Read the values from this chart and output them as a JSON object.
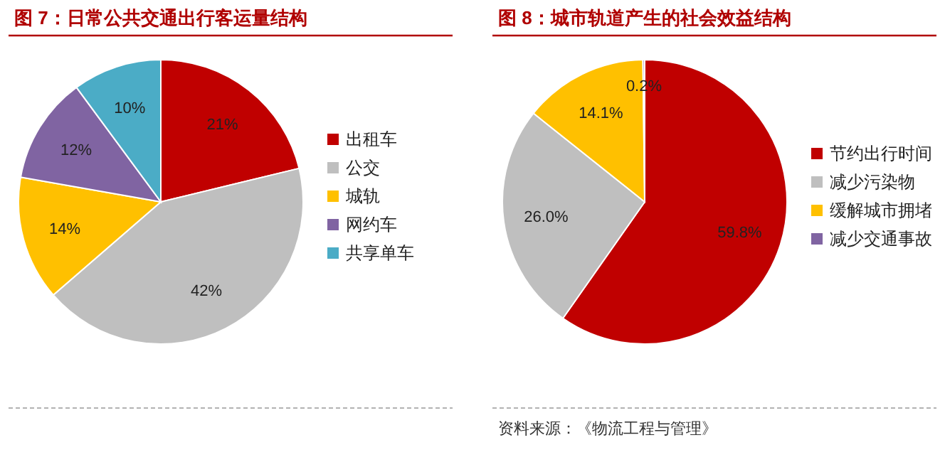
{
  "chart_data": [
    {
      "type": "pie",
      "title": "图 7：日常公共交通出行客运量结构",
      "categories": [
        "出租车",
        "公交",
        "城轨",
        "网约车",
        "共享单车"
      ],
      "values": [
        21,
        42,
        14,
        12,
        10
      ],
      "colors": [
        "#c00000",
        "#bfbfbf",
        "#ffc000",
        "#8064a2",
        "#4bacc6"
      ],
      "value_labels": [
        "21%",
        "42%",
        "14%",
        "12%",
        "10%"
      ],
      "legend": "right"
    },
    {
      "type": "pie",
      "title": "图 8：城市轨道产生的社会效益结构",
      "categories": [
        "节约出行时间",
        "减少污染物",
        "缓解城市拥堵",
        "减少交通事故"
      ],
      "values": [
        59.8,
        26.0,
        14.1,
        0.2
      ],
      "colors": [
        "#c00000",
        "#bfbfbf",
        "#ffc000",
        "#8064a2"
      ],
      "value_labels": [
        "59.8%",
        "26.0%",
        "14.1%",
        "0.2%"
      ],
      "legend": "right",
      "annotations": [
        "资料来源：《物流工程与管理》"
      ]
    }
  ]
}
